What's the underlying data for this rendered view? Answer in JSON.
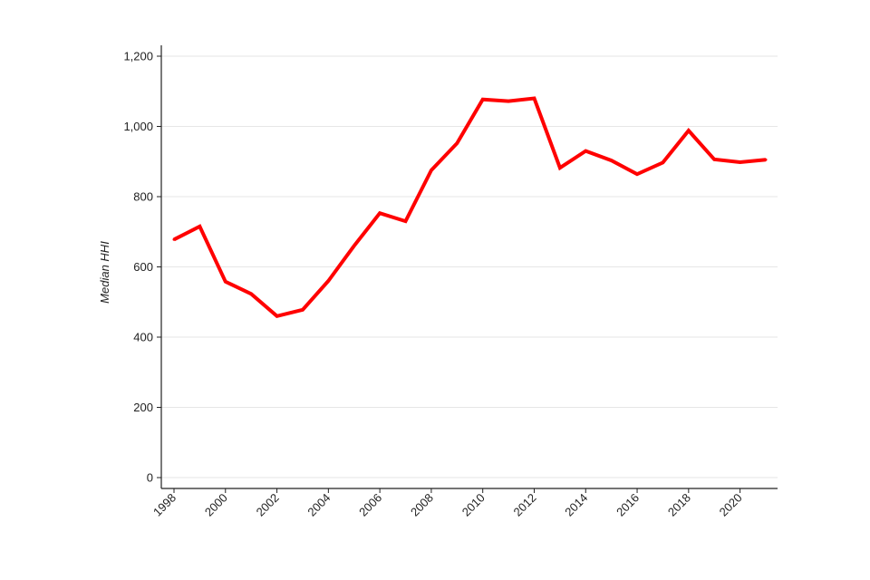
{
  "chart_data": {
    "type": "line",
    "title": "",
    "xlabel": "",
    "ylabel": "Median HHI",
    "xlim": [
      1998,
      2021
    ],
    "ylim": [
      0,
      1200
    ],
    "grid": "horizontal",
    "legend": "none",
    "x_ticks": [
      {
        "value": 1998,
        "label": "1998"
      },
      {
        "value": 2000,
        "label": "2000"
      },
      {
        "value": 2002,
        "label": "2002"
      },
      {
        "value": 2004,
        "label": "2004"
      },
      {
        "value": 2006,
        "label": "2006"
      },
      {
        "value": 2008,
        "label": "2008"
      },
      {
        "value": 2010,
        "label": "2010"
      },
      {
        "value": 2012,
        "label": "2012"
      },
      {
        "value": 2014,
        "label": "2014"
      },
      {
        "value": 2016,
        "label": "2016"
      },
      {
        "value": 2018,
        "label": "2018"
      },
      {
        "value": 2020,
        "label": "2020"
      }
    ],
    "y_ticks": [
      {
        "value": 0,
        "label": "0"
      },
      {
        "value": 200,
        "label": "200"
      },
      {
        "value": 400,
        "label": "400"
      },
      {
        "value": 600,
        "label": "600"
      },
      {
        "value": 800,
        "label": "800"
      },
      {
        "value": 1000,
        "label": "1,000"
      },
      {
        "value": 1200,
        "label": "1,200"
      }
    ],
    "x": [
      1998,
      1999,
      2000,
      2001,
      2002,
      2003,
      2004,
      2005,
      2006,
      2007,
      2008,
      2009,
      2010,
      2011,
      2012,
      2013,
      2014,
      2015,
      2016,
      2017,
      2018,
      2019,
      2020,
      2021
    ],
    "series": [
      {
        "color": "#ff0000",
        "values": [
          678,
          715,
          558,
          523,
          460,
          478,
          560,
          660,
          753,
          730,
          875,
          952,
          1077,
          1072,
          1080,
          882,
          930,
          903,
          864,
          897,
          988,
          906,
          898,
          905
        ]
      }
    ]
  }
}
